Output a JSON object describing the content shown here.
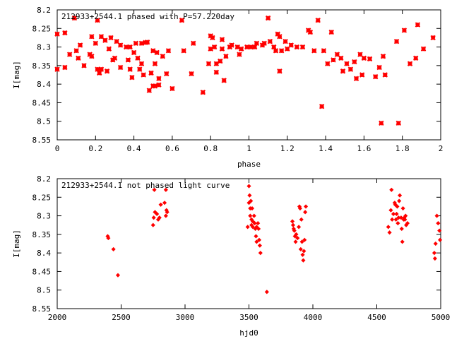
{
  "colors": {
    "points": "#ff0000",
    "axes": "#000000",
    "background": "#ffffff"
  },
  "chart_data": [
    {
      "type": "scatter",
      "marker": "star",
      "title": "212933+2544.1 phased with P=57.220day",
      "xlabel": "phase",
      "ylabel": "I[mag]",
      "xlim": [
        0,
        2
      ],
      "ylim": [
        8.55,
        8.2
      ],
      "y_inverted": true,
      "grid": false,
      "xticks": [
        0,
        0.2,
        0.4,
        0.6,
        0.8,
        1,
        1.2,
        1.4,
        1.6,
        1.8,
        2
      ],
      "xtick_labels": [
        "0",
        "0.2",
        "0.4",
        "0.6",
        "0.8",
        "1",
        "1.2",
        "1.4",
        "1.6",
        "1.8",
        "2"
      ],
      "yticks": [
        8.2,
        8.25,
        8.3,
        8.35,
        8.4,
        8.45,
        8.5,
        8.55
      ],
      "ytick_labels": [
        "8.2",
        "8.25",
        "8.3",
        "8.35",
        "8.4",
        "8.45",
        "8.5",
        "8.55"
      ],
      "points": [
        [
          0.0,
          8.265
        ],
        [
          0.0,
          8.36
        ],
        [
          0.04,
          8.355
        ],
        [
          0.04,
          8.262
        ],
        [
          0.065,
          8.32
        ],
        [
          0.09,
          8.222
        ],
        [
          0.1,
          8.31
        ],
        [
          0.11,
          8.33
        ],
        [
          0.12,
          8.295
        ],
        [
          0.14,
          8.35
        ],
        [
          0.17,
          8.32
        ],
        [
          0.18,
          8.272
        ],
        [
          0.18,
          8.325
        ],
        [
          0.2,
          8.29
        ],
        [
          0.21,
          8.228
        ],
        [
          0.21,
          8.36
        ],
        [
          0.22,
          8.37
        ],
        [
          0.23,
          8.272
        ],
        [
          0.23,
          8.36
        ],
        [
          0.25,
          8.282
        ],
        [
          0.26,
          8.365
        ],
        [
          0.27,
          8.305
        ],
        [
          0.28,
          8.275
        ],
        [
          0.29,
          8.335
        ],
        [
          0.3,
          8.33
        ],
        [
          0.31,
          8.285
        ],
        [
          0.33,
          8.355
        ],
        [
          0.33,
          8.295
        ],
        [
          0.36,
          8.3
        ],
        [
          0.37,
          8.335
        ],
        [
          0.38,
          8.3
        ],
        [
          0.38,
          8.36
        ],
        [
          0.39,
          8.382
        ],
        [
          0.4,
          8.315
        ],
        [
          0.41,
          8.29
        ],
        [
          0.42,
          8.33
        ],
        [
          0.43,
          8.36
        ],
        [
          0.44,
          8.29
        ],
        [
          0.44,
          8.345
        ],
        [
          0.45,
          8.375
        ],
        [
          0.46,
          8.288
        ],
        [
          0.47,
          8.287
        ],
        [
          0.48,
          8.417
        ],
        [
          0.49,
          8.37
        ],
        [
          0.5,
          8.31
        ],
        [
          0.5,
          8.405
        ],
        [
          0.51,
          8.345
        ],
        [
          0.51,
          8.405
        ],
        [
          0.52,
          8.315
        ],
        [
          0.53,
          8.402
        ],
        [
          0.53,
          8.385
        ],
        [
          0.55,
          8.325
        ],
        [
          0.57,
          8.372
        ],
        [
          0.58,
          8.31
        ],
        [
          0.6,
          8.412
        ],
        [
          0.65,
          8.228
        ],
        [
          0.66,
          8.31
        ],
        [
          0.7,
          8.372
        ],
        [
          0.71,
          8.29
        ],
        [
          0.76,
          8.422
        ],
        [
          0.79,
          8.345
        ],
        [
          0.8,
          8.305
        ],
        [
          0.8,
          8.27
        ],
        [
          0.81,
          8.275
        ],
        [
          0.82,
          8.3
        ],
        [
          0.83,
          8.368
        ],
        [
          0.83,
          8.345
        ],
        [
          0.85,
          8.338
        ],
        [
          0.86,
          8.305
        ],
        [
          0.86,
          8.28
        ],
        [
          0.87,
          8.39
        ],
        [
          0.88,
          8.325
        ],
        [
          0.9,
          8.3
        ],
        [
          0.91,
          8.295
        ],
        [
          0.94,
          8.3
        ],
        [
          0.95,
          8.32
        ],
        [
          0.96,
          8.305
        ],
        [
          0.99,
          8.3
        ],
        [
          1.01,
          8.3
        ],
        [
          1.03,
          8.3
        ],
        [
          1.04,
          8.29
        ],
        [
          1.07,
          8.295
        ],
        [
          1.08,
          8.29
        ],
        [
          1.1,
          8.222
        ],
        [
          1.11,
          8.285
        ],
        [
          1.13,
          8.3
        ],
        [
          1.14,
          8.31
        ],
        [
          1.15,
          8.265
        ],
        [
          1.16,
          8.272
        ],
        [
          1.16,
          8.365
        ],
        [
          1.17,
          8.31
        ],
        [
          1.19,
          8.285
        ],
        [
          1.2,
          8.305
        ],
        [
          1.22,
          8.295
        ],
        [
          1.25,
          8.3
        ],
        [
          1.28,
          8.3
        ],
        [
          1.31,
          8.255
        ],
        [
          1.32,
          8.26
        ],
        [
          1.34,
          8.31
        ],
        [
          1.36,
          8.228
        ],
        [
          1.38,
          8.46
        ],
        [
          1.39,
          8.31
        ],
        [
          1.41,
          8.345
        ],
        [
          1.43,
          8.26
        ],
        [
          1.44,
          8.335
        ],
        [
          1.46,
          8.32
        ],
        [
          1.48,
          8.33
        ],
        [
          1.49,
          8.365
        ],
        [
          1.51,
          8.345
        ],
        [
          1.53,
          8.36
        ],
        [
          1.55,
          8.34
        ],
        [
          1.56,
          8.385
        ],
        [
          1.58,
          8.32
        ],
        [
          1.59,
          8.375
        ],
        [
          1.6,
          8.33
        ],
        [
          1.63,
          8.332
        ],
        [
          1.66,
          8.38
        ],
        [
          1.68,
          8.355
        ],
        [
          1.69,
          8.505
        ],
        [
          1.7,
          8.325
        ],
        [
          1.71,
          8.375
        ],
        [
          1.77,
          8.285
        ],
        [
          1.78,
          8.505
        ],
        [
          1.81,
          8.255
        ],
        [
          1.84,
          8.345
        ],
        [
          1.87,
          8.33
        ],
        [
          1.88,
          8.24
        ],
        [
          1.91,
          8.305
        ],
        [
          1.96,
          8.275
        ]
      ]
    },
    {
      "type": "scatter",
      "marker": "diamond",
      "title": "212933+2544.1 not phased light curve",
      "xlabel": "hjd0",
      "ylabel": "I[mag]",
      "xlim": [
        2000,
        5000
      ],
      "ylim": [
        8.55,
        8.2
      ],
      "y_inverted": true,
      "grid": false,
      "xticks": [
        2000,
        2500,
        3000,
        3500,
        4000,
        4500,
        5000
      ],
      "xtick_labels": [
        "2000",
        "2500",
        "3000",
        "3500",
        "4000",
        "4500",
        "5000"
      ],
      "yticks": [
        8.2,
        8.25,
        8.3,
        8.35,
        8.4,
        8.45,
        8.5,
        8.55
      ],
      "ytick_labels": [
        "8.2",
        "8.25",
        "8.3",
        "8.35",
        "8.4",
        "8.45",
        "8.5",
        "8.55"
      ],
      "points": [
        [
          2395,
          8.355
        ],
        [
          2400,
          8.36
        ],
        [
          2440,
          8.39
        ],
        [
          2475,
          8.46
        ],
        [
          2750,
          8.325
        ],
        [
          2755,
          8.305
        ],
        [
          2765,
          8.29
        ],
        [
          2760,
          8.23
        ],
        [
          2780,
          8.295
        ],
        [
          2790,
          8.31
        ],
        [
          2800,
          8.305
        ],
        [
          2810,
          8.27
        ],
        [
          2840,
          8.265
        ],
        [
          2850,
          8.3
        ],
        [
          2855,
          8.285
        ],
        [
          2860,
          8.29
        ],
        [
          2850,
          8.23
        ],
        [
          3490,
          8.33
        ],
        [
          3500,
          8.22
        ],
        [
          3500,
          8.265
        ],
        [
          3505,
          8.245
        ],
        [
          3510,
          8.28
        ],
        [
          3510,
          8.3
        ],
        [
          3515,
          8.26
        ],
        [
          3520,
          8.31
        ],
        [
          3520,
          8.325
        ],
        [
          3525,
          8.28
        ],
        [
          3530,
          8.33
        ],
        [
          3530,
          8.315
        ],
        [
          3540,
          8.3
        ],
        [
          3545,
          8.32
        ],
        [
          3550,
          8.335
        ],
        [
          3555,
          8.355
        ],
        [
          3560,
          8.37
        ],
        [
          3560,
          8.33
        ],
        [
          3570,
          8.32
        ],
        [
          3575,
          8.335
        ],
        [
          3580,
          8.365
        ],
        [
          3585,
          8.38
        ],
        [
          3590,
          8.4
        ],
        [
          3640,
          8.505
        ],
        [
          3840,
          8.315
        ],
        [
          3845,
          8.325
        ],
        [
          3850,
          8.335
        ],
        [
          3855,
          8.34
        ],
        [
          3860,
          8.355
        ],
        [
          3865,
          8.37
        ],
        [
          3870,
          8.35
        ],
        [
          3880,
          8.36
        ],
        [
          3890,
          8.33
        ],
        [
          3895,
          8.275
        ],
        [
          3900,
          8.28
        ],
        [
          3905,
          8.39
        ],
        [
          3910,
          8.31
        ],
        [
          3915,
          8.37
        ],
        [
          3920,
          8.405
        ],
        [
          3925,
          8.42
        ],
        [
          3930,
          8.395
        ],
        [
          3935,
          8.365
        ],
        [
          3940,
          8.29
        ],
        [
          3945,
          8.275
        ],
        [
          4590,
          8.33
        ],
        [
          4600,
          8.345
        ],
        [
          4610,
          8.285
        ],
        [
          4615,
          8.23
        ],
        [
          4620,
          8.31
        ],
        [
          4630,
          8.295
        ],
        [
          4640,
          8.265
        ],
        [
          4645,
          8.27
        ],
        [
          4650,
          8.31
        ],
        [
          4655,
          8.295
        ],
        [
          4660,
          8.275
        ],
        [
          4665,
          8.32
        ],
        [
          4670,
          8.305
        ],
        [
          4675,
          8.26
        ],
        [
          4680,
          8.245
        ],
        [
          4690,
          8.305
        ],
        [
          4695,
          8.335
        ],
        [
          4700,
          8.37
        ],
        [
          4705,
          8.28
        ],
        [
          4710,
          8.31
        ],
        [
          4715,
          8.305
        ],
        [
          4720,
          8.31
        ],
        [
          4725,
          8.3
        ],
        [
          4730,
          8.325
        ],
        [
          4740,
          8.32
        ],
        [
          4950,
          8.4
        ],
        [
          4955,
          8.415
        ],
        [
          4960,
          8.375
        ],
        [
          4970,
          8.3
        ],
        [
          4980,
          8.32
        ],
        [
          4990,
          8.34
        ],
        [
          4995,
          8.365
        ]
      ]
    }
  ]
}
